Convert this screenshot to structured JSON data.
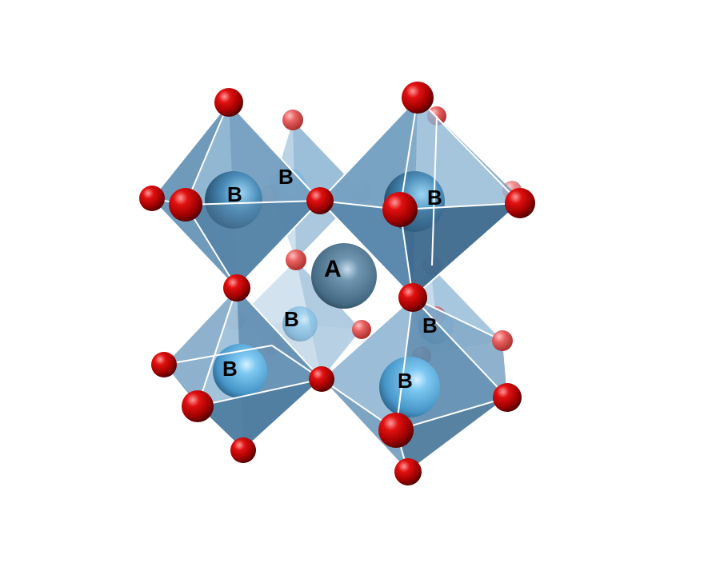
{
  "figure": {
    "structure": "perovskite-octahedra",
    "colors": {
      "oxygen": "#cc0000",
      "b_site_atom": "#5aaee0",
      "a_site_atom": "#4a6f88",
      "octahedron_face": "#6f9cc0",
      "background": "#ffffff"
    },
    "labels": {
      "b_top_left": "B",
      "b_top_back": "B",
      "b_top_right": "B",
      "a_center": "A",
      "b_mid_back": "B",
      "b_mid_right": "B",
      "b_bottom_left": "B",
      "b_bottom_right": "B"
    }
  }
}
